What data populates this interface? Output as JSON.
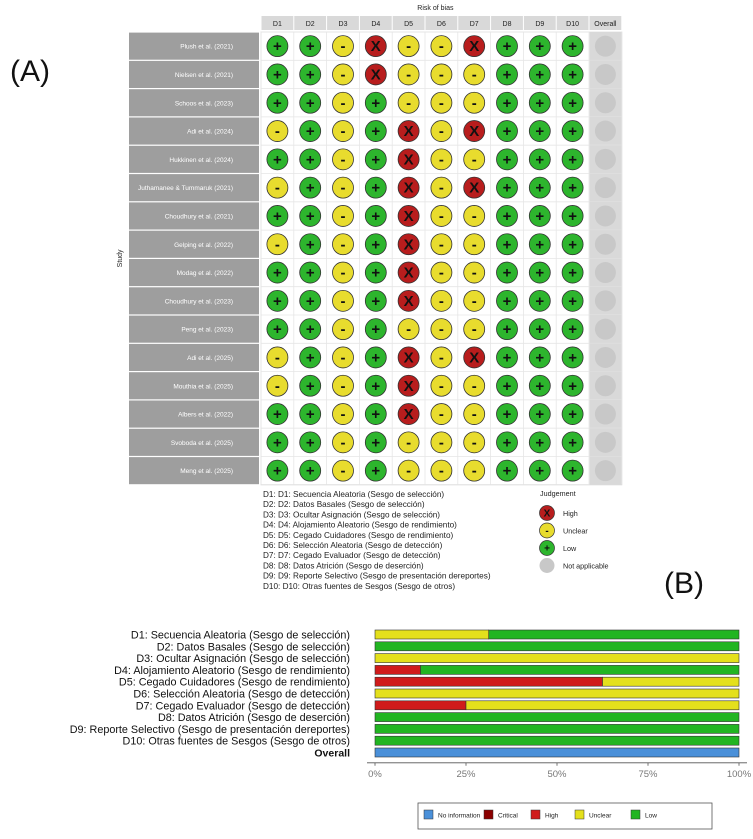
{
  "panel_labels": {
    "a": "(A)",
    "b": "(B)"
  },
  "chart_data": [
    {
      "type": "table",
      "title": "Risk of bias",
      "y_axis_label": "Study",
      "columns": [
        "D1",
        "D2",
        "D3",
        "D4",
        "D5",
        "D6",
        "D7",
        "D8",
        "D9",
        "D10",
        "Overall"
      ],
      "rows": [
        {
          "study": "Plush et al. (2021)",
          "judgements": [
            "L",
            "L",
            "U",
            "H",
            "U",
            "U",
            "H",
            "L",
            "L",
            "L",
            "N"
          ]
        },
        {
          "study": "Nielsen et al. (2021)",
          "judgements": [
            "L",
            "L",
            "U",
            "H",
            "U",
            "U",
            "U",
            "L",
            "L",
            "L",
            "N"
          ]
        },
        {
          "study": "Schoos et al. (2023)",
          "judgements": [
            "L",
            "L",
            "U",
            "L",
            "U",
            "U",
            "U",
            "L",
            "L",
            "L",
            "N"
          ]
        },
        {
          "study": "Adi et al. (2024)",
          "judgements": [
            "U",
            "L",
            "U",
            "L",
            "H",
            "U",
            "H",
            "L",
            "L",
            "L",
            "N"
          ]
        },
        {
          "study": "Hukkinen et al. (2024)",
          "judgements": [
            "L",
            "L",
            "U",
            "L",
            "H",
            "U",
            "U",
            "L",
            "L",
            "L",
            "N"
          ]
        },
        {
          "study": "Juthamanee & Tummaruk (2021)",
          "judgements": [
            "U",
            "L",
            "U",
            "L",
            "H",
            "U",
            "H",
            "L",
            "L",
            "L",
            "N"
          ]
        },
        {
          "study": "Choudhury et al. (2021)",
          "judgements": [
            "L",
            "L",
            "U",
            "L",
            "H",
            "U",
            "U",
            "L",
            "L",
            "L",
            "N"
          ]
        },
        {
          "study": "Gelping et al. (2022)",
          "judgements": [
            "U",
            "L",
            "U",
            "L",
            "H",
            "U",
            "U",
            "L",
            "L",
            "L",
            "N"
          ]
        },
        {
          "study": "Modag et al. (2022)",
          "judgements": [
            "L",
            "L",
            "U",
            "L",
            "H",
            "U",
            "U",
            "L",
            "L",
            "L",
            "N"
          ]
        },
        {
          "study": "Choudhury et al. (2023)",
          "judgements": [
            "L",
            "L",
            "U",
            "L",
            "H",
            "U",
            "U",
            "L",
            "L",
            "L",
            "N"
          ]
        },
        {
          "study": "Peng et al. (2023)",
          "judgements": [
            "L",
            "L",
            "U",
            "L",
            "U",
            "U",
            "U",
            "L",
            "L",
            "L",
            "N"
          ]
        },
        {
          "study": "Adi et al. (2025)",
          "judgements": [
            "U",
            "L",
            "U",
            "L",
            "H",
            "U",
            "H",
            "L",
            "L",
            "L",
            "N"
          ]
        },
        {
          "study": "Mouthia et al. (2025)",
          "judgements": [
            "U",
            "L",
            "U",
            "L",
            "H",
            "U",
            "U",
            "L",
            "L",
            "L",
            "N"
          ]
        },
        {
          "study": "Albers et al. (2022)",
          "judgements": [
            "L",
            "L",
            "U",
            "L",
            "H",
            "U",
            "U",
            "L",
            "L",
            "L",
            "N"
          ]
        },
        {
          "study": "Svoboda et al. (2025)",
          "judgements": [
            "L",
            "L",
            "U",
            "L",
            "U",
            "U",
            "U",
            "L",
            "L",
            "L",
            "N"
          ]
        },
        {
          "study": "Meng et al. (2025)",
          "judgements": [
            "L",
            "L",
            "U",
            "L",
            "U",
            "U",
            "U",
            "L",
            "L",
            "L",
            "N"
          ]
        }
      ],
      "domain_key": [
        "D1: D1: Secuencia Aleatoria (Sesgo de selección)",
        "D2: D2: Datos Basales (Sesgo de selección)",
        "D3: D3: Ocultar Asignación (Sesgo de selección)",
        "D4: D4: Alojamiento Aleatorio (Sesgo de rendimiento)",
        "D5: D5: Cegado Cuidadores (Sesgo de rendimiento)",
        "D6: D6: Selección Aleatoria (Sesgo de detección)",
        "D7: D7: Cegado Evaluador (Sesgo de detección)",
        "D8: D8: Datos Atrición (Sesgo de deserción)",
        "D9: D9: Reporte Selectivo (Sesgo de presentación dereportes)",
        "D10: D10: Otras fuentes de Sesgos (Sesgo de otros)"
      ],
      "legend_title": "Judgement",
      "legend": [
        {
          "code": "H",
          "label": "High",
          "color": "#b81d1d",
          "symbol": "X"
        },
        {
          "code": "U",
          "label": "Unclear",
          "color": "#e8dc2e",
          "symbol": "-"
        },
        {
          "code": "L",
          "label": "Low",
          "color": "#2db52d",
          "symbol": "+"
        },
        {
          "code": "N",
          "label": "Not applicable",
          "color": "#c8c8c8",
          "symbol": ""
        }
      ]
    },
    {
      "type": "bar",
      "orientation": "horizontal",
      "stacked": true,
      "categories": [
        "D1: Secuencia Aleatoria (Sesgo de selección)",
        "D2: Datos Basales (Sesgo de selección)",
        "D3: Ocultar Asignación (Sesgo de selección)",
        "D4: Alojamiento Aleatorio (Sesgo de rendimiento)",
        "D5: Cegado Cuidadores (Sesgo de rendimiento)",
        "D6: Selección Aleatoria (Sesgo de detección)",
        "D7: Cegado Evaluador  (Sesgo de detección)",
        "D8: Datos Atrición (Sesgo de deserción)",
        "D9: Reporte Selectivo (Sesgo de presentación dereportes)",
        "D10: Otras fuentes de Sesgos (Sesgo de otros)",
        "Overall"
      ],
      "series": [
        {
          "name": "No information",
          "color": "#4a90d9",
          "values": [
            0,
            0,
            0,
            0,
            0,
            0,
            0,
            0,
            0,
            0,
            100
          ]
        },
        {
          "name": "Critical",
          "color": "#8b0000",
          "values": [
            0,
            0,
            0,
            0,
            0,
            0,
            0,
            0,
            0,
            0,
            0
          ]
        },
        {
          "name": "High",
          "color": "#d01b1b",
          "values": [
            0,
            0,
            0,
            12.5,
            62.5,
            0,
            25,
            0,
            0,
            0,
            0
          ]
        },
        {
          "name": "Unclear",
          "color": "#e4e01c",
          "values": [
            31.25,
            0,
            100,
            0,
            37.5,
            100,
            75,
            0,
            0,
            0,
            0
          ]
        },
        {
          "name": "Low",
          "color": "#22b522",
          "values": [
            68.75,
            100,
            0,
            87.5,
            0,
            0,
            0,
            100,
            100,
            100,
            0
          ]
        }
      ],
      "xlim": [
        0,
        100
      ],
      "x_ticks": [
        "0%",
        "25%",
        "50%",
        "75%",
        "100%"
      ]
    }
  ]
}
